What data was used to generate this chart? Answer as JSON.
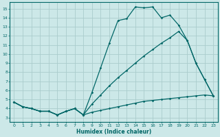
{
  "xlabel": "Humidex (Indice chaleur)",
  "background_color": "#cce8e8",
  "grid_color": "#aacccc",
  "line_color": "#006666",
  "xlim": [
    -0.5,
    23.5
  ],
  "ylim": [
    2.5,
    15.7
  ],
  "xticks": [
    0,
    1,
    2,
    3,
    4,
    5,
    6,
    7,
    8,
    9,
    10,
    11,
    12,
    13,
    14,
    15,
    16,
    17,
    18,
    19,
    20,
    21,
    22,
    23
  ],
  "yticks": [
    3,
    4,
    5,
    6,
    7,
    8,
    9,
    10,
    11,
    12,
    13,
    14,
    15
  ],
  "line1_x": [
    0,
    1,
    2,
    3,
    4,
    5,
    6,
    7,
    8,
    9,
    10,
    11,
    12,
    13,
    14,
    15,
    16,
    17,
    18,
    19,
    20,
    21,
    22,
    23
  ],
  "line1_y": [
    4.7,
    4.2,
    4.0,
    3.7,
    3.7,
    3.3,
    3.7,
    4.0,
    3.3,
    5.8,
    8.5,
    11.2,
    13.7,
    13.9,
    15.2,
    15.1,
    15.2,
    14.0,
    14.3,
    13.2,
    11.5,
    9.0,
    7.2,
    5.4
  ],
  "line2_x": [
    0,
    1,
    2,
    3,
    4,
    5,
    6,
    7,
    8,
    9,
    10,
    11,
    12,
    13,
    14,
    15,
    16,
    17,
    18,
    19,
    20,
    21,
    22,
    23
  ],
  "line2_y": [
    4.7,
    4.2,
    4.0,
    3.7,
    3.7,
    3.3,
    3.7,
    4.0,
    3.3,
    4.5,
    5.5,
    6.5,
    7.4,
    8.2,
    9.0,
    9.8,
    10.5,
    11.2,
    11.8,
    12.5,
    11.5,
    9.0,
    7.2,
    5.4
  ],
  "line3_x": [
    0,
    1,
    2,
    3,
    4,
    5,
    6,
    7,
    8,
    9,
    10,
    11,
    12,
    13,
    14,
    15,
    16,
    17,
    18,
    19,
    20,
    21,
    22,
    23
  ],
  "line3_y": [
    4.7,
    4.2,
    4.0,
    3.7,
    3.7,
    3.3,
    3.7,
    4.0,
    3.3,
    3.6,
    3.8,
    4.0,
    4.2,
    4.4,
    4.6,
    4.8,
    4.9,
    5.0,
    5.1,
    5.2,
    5.3,
    5.4,
    5.5,
    5.4
  ]
}
